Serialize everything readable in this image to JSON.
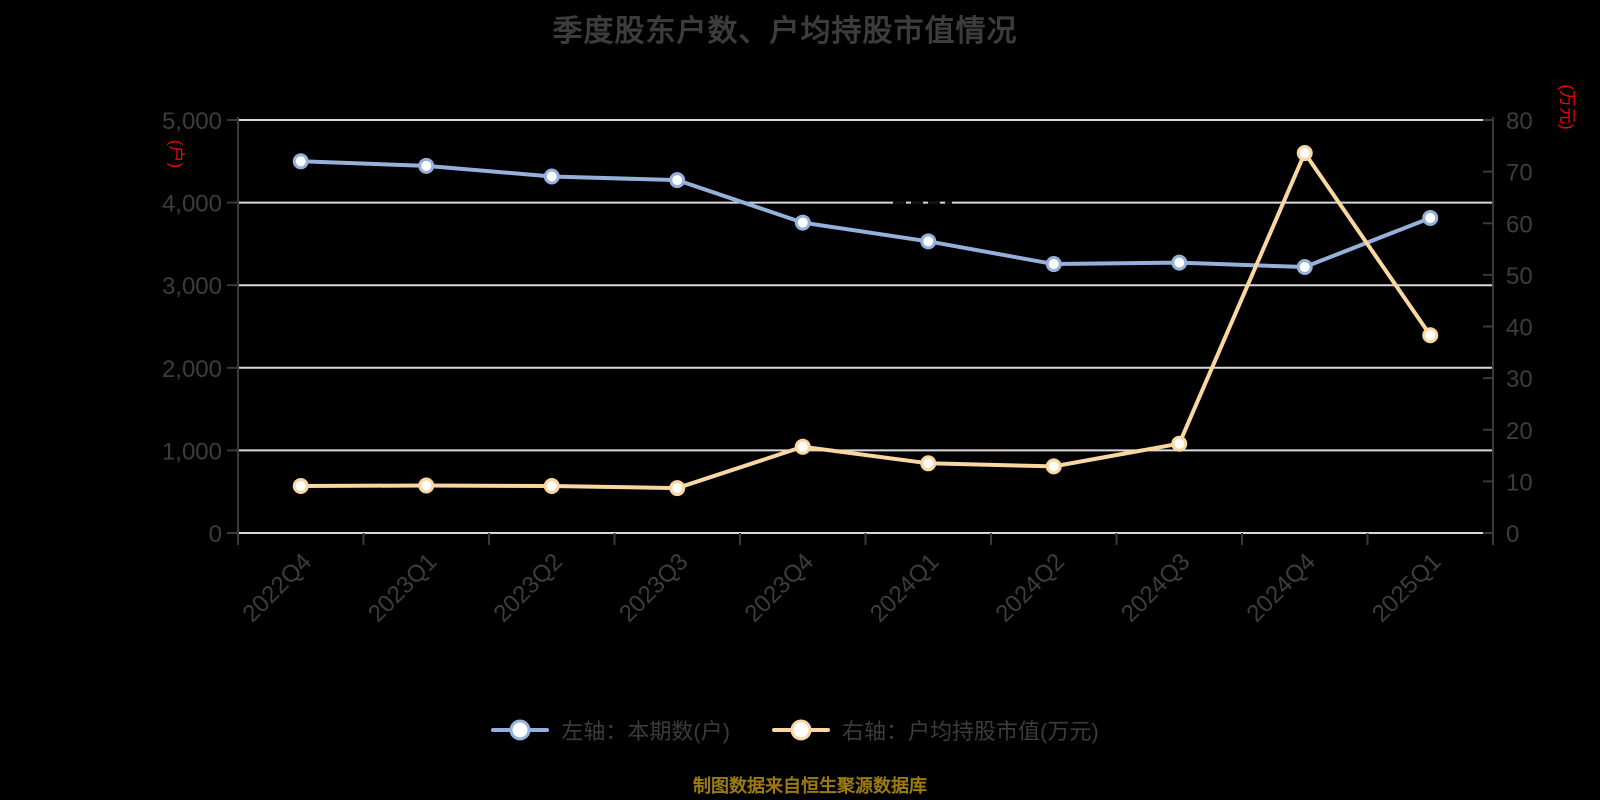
{
  "footer": "制图数据来自恒生聚源数据库",
  "colors": {
    "background": "#000000",
    "title_text": "#3C3C3C",
    "axis_label_text": "#3D3D3D",
    "axis_line": "#3A3A3A",
    "gridline": "#D9D9D9",
    "axis_unit_red": "#FF0000",
    "footer_gold": "#9C7B11",
    "series_blue": "#96B0DC",
    "series_yellow": "#FAD7A0"
  },
  "chart_data": {
    "type": "line",
    "title": "季度股东户数、户均持股市值情况",
    "categories": [
      "2022Q4",
      "2023Q1",
      "2023Q2",
      "2023Q3",
      "2023Q4",
      "2024Q1",
      "2024Q2",
      "2024Q3",
      "2024Q4",
      "2025Q1"
    ],
    "series": [
      {
        "name": "左轴：本期数(户)",
        "axis": "left",
        "color": "#96B0DC",
        "marker_fill": "#FFFFFF",
        "values": [
          4500,
          4445,
          4316,
          4272,
          3758,
          3531,
          3256,
          3273,
          3220,
          3814
        ]
      },
      {
        "name": "右轴：户均持股市值(万元)",
        "axis": "right",
        "color": "#FAD7A0",
        "marker_fill": "#FFFFFF",
        "values": [
          9.1,
          9.2,
          9.1,
          8.7,
          16.7,
          13.5,
          12.9,
          17.3,
          73.6,
          38.3
        ]
      }
    ],
    "left_axis": {
      "unit": "(户)",
      "min": 0,
      "max": 5000,
      "step": 1000
    },
    "right_axis": {
      "unit": "(万元)",
      "min": 0,
      "max": 80,
      "step": 10
    },
    "grid": true,
    "legend_position": "bottom",
    "x_label_rotation": 45
  }
}
